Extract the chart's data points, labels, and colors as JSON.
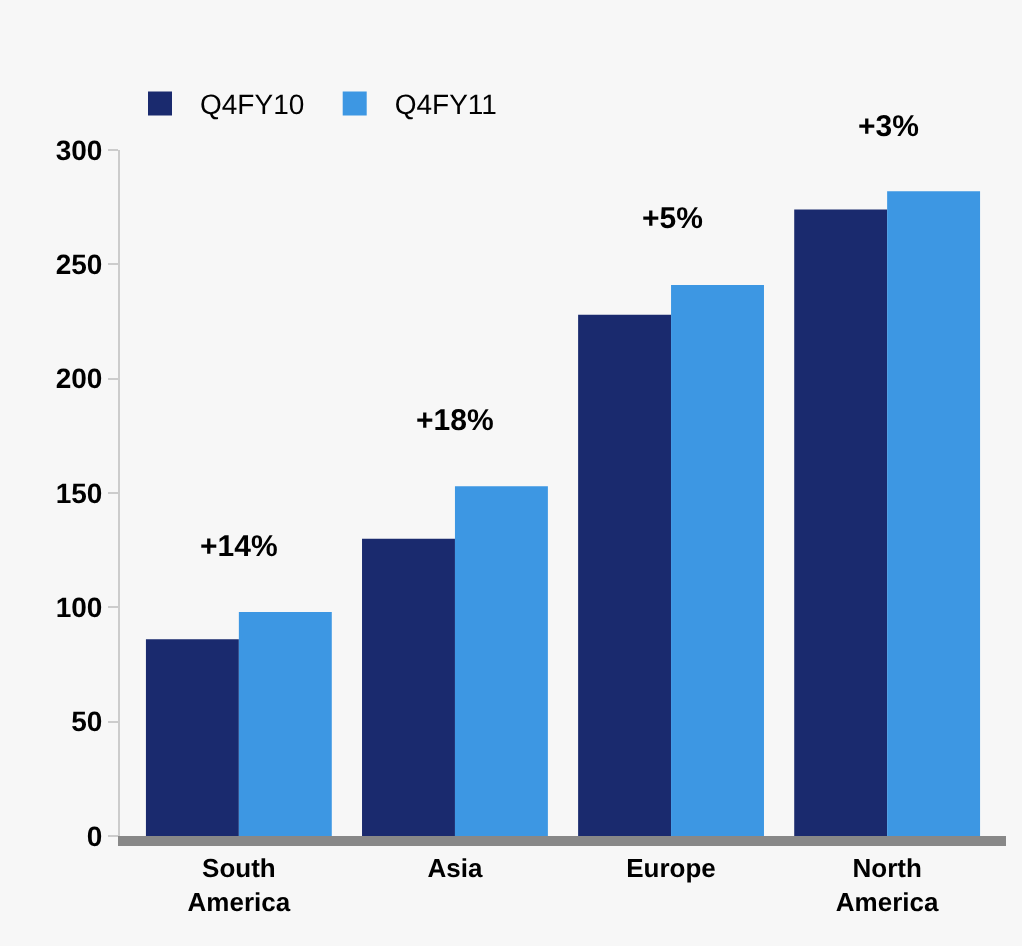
{
  "chart_data": {
    "type": "bar",
    "categories": [
      "South America",
      "Asia",
      "Europe",
      "North America"
    ],
    "series": [
      {
        "name": "Q4FY10",
        "color": "#1a2a6e",
        "values": [
          86,
          130,
          228,
          274
        ]
      },
      {
        "name": "Q4FY11",
        "color": "#3d97e3",
        "values": [
          98,
          153,
          241,
          282
        ]
      }
    ],
    "ylim": [
      0,
      300
    ],
    "yticks": [
      0,
      50,
      100,
      150,
      200,
      250,
      300
    ],
    "grid": false,
    "legend": "top left",
    "annotations": [
      "+14%",
      "+18%",
      "+5%",
      "+3%"
    ]
  }
}
